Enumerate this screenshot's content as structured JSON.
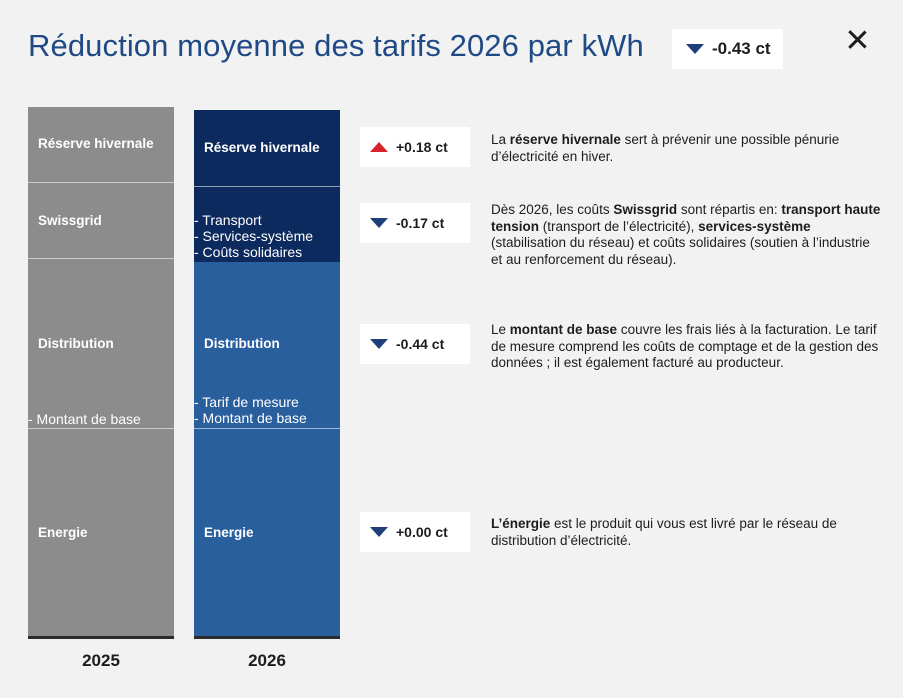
{
  "header": {
    "title": "Réduction moyenne des tarifs 2026 par kWh",
    "total_change": "-0.43 ct",
    "total_direction": "down"
  },
  "colors": {
    "title": "#1f4a86",
    "bar_2025": "#8c8c8c",
    "bar_2026_dark": "#0d2a5e",
    "bar_2026_light": "#2a5f9e",
    "arrow_down": "#1f3f7a",
    "arrow_up": "#d8232a"
  },
  "columns": {
    "y2025": {
      "year": "2025",
      "reserve": "Réserve hivernale",
      "swissgrid": "Swissgrid",
      "distribution": "Distribution",
      "distribution_sub": "- Montant de base",
      "energie": "Energie"
    },
    "y2026": {
      "year": "2026",
      "reserve": "Réserve hivernale",
      "swissgrid_sub1": "- Transport",
      "swissgrid_sub2": "- Services-système",
      "swissgrid_sub3": "- Coûts solidaires",
      "distribution": "Distribution",
      "distribution_sub1": "- Tarif de mesure",
      "distribution_sub2": "- Montant de base",
      "energie": "Energie"
    }
  },
  "changes": [
    {
      "value": "+0.18 ct",
      "direction": "up",
      "desc_parts": [
        {
          "t": "La ",
          "b": false
        },
        {
          "t": "réserve hivernale",
          "b": true
        },
        {
          "t": " sert à prévenir une possible pénurie d’électricité en hiver.",
          "b": false
        }
      ]
    },
    {
      "value": "-0.17 ct",
      "direction": "down",
      "desc_parts": [
        {
          "t": "Dès 2026, les coûts ",
          "b": false
        },
        {
          "t": "Swissgrid",
          "b": true
        },
        {
          "t": " sont répartis en: ",
          "b": false
        },
        {
          "t": "transport haute tension",
          "b": true
        },
        {
          "t": " (transport de l’électricité), ",
          "b": false
        },
        {
          "t": "services-système",
          "b": true
        },
        {
          "t": " (stabilisation du réseau) et coûts solidaires (soutien à l’industrie et au renforcement du réseau).",
          "b": false
        }
      ]
    },
    {
      "value": "-0.44 ct",
      "direction": "down",
      "desc_parts": [
        {
          "t": "Le ",
          "b": false
        },
        {
          "t": "montant de base",
          "b": true
        },
        {
          "t": " couvre les frais liés à la facturation. Le tarif de mesure comprend les coûts de comptage et de la gestion des données ; il est également facturé au producteur.",
          "b": false
        }
      ]
    },
    {
      "value": "+0.00 ct",
      "direction": "down",
      "desc_parts": [
        {
          "t": "L’énergie",
          "b": true
        },
        {
          "t": " est le produit qui vous est livré par le réseau de distribution d’électricité.",
          "b": false
        }
      ]
    }
  ]
}
